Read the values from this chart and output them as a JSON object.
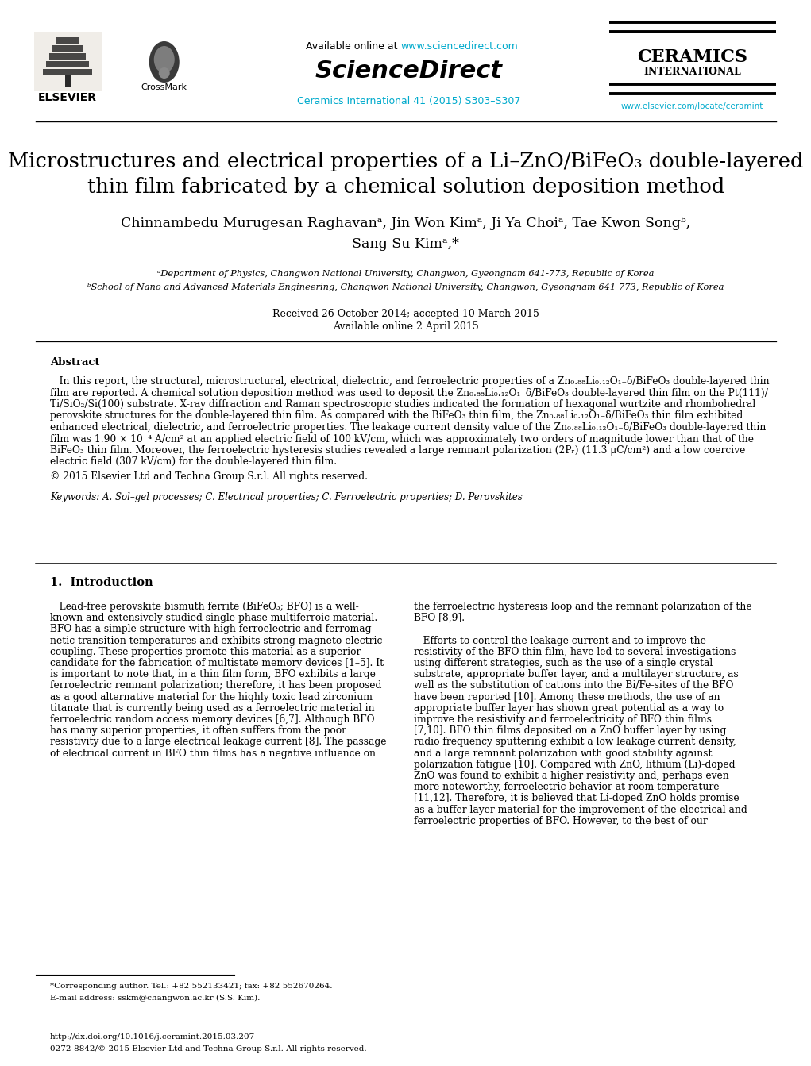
{
  "page_bg": "#ffffff",
  "header": {
    "available_text": "Available online at ",
    "url": "www.sciencedirect.com",
    "sciencedirect": "ScienceDirect",
    "journal_line1": "Ceramics International 41 (2015) S303–S307",
    "ceramics_line1": "CERAMICS",
    "ceramics_line2": "INTERNATIONAL",
    "elsevier_text": "ELSEVIER",
    "crossmark_text": "CrossMark",
    "website": "www.elsevier.com/locate/ceramint"
  },
  "title_line1": "Microstructures and electrical properties of a Li–ZnO/BiFeO₃ double-layered",
  "title_line2": "thin film fabricated by a chemical solution deposition method",
  "authors": "Chinnambedu Murugesan Raghavanᵃ, Jin Won Kimᵃ, Ji Ya Choiᵃ, Tae Kwon Songᵇ,",
  "authors2": "Sang Su Kimᵃ,*",
  "affil_a": "ᵃDepartment of Physics, Changwon National University, Changwon, Gyeongnam 641-773, Republic of Korea",
  "affil_b": "ᵇSchool of Nano and Advanced Materials Engineering, Changwon National University, Changwon, Gyeongnam 641-773, Republic of Korea",
  "received": "Received 26 October 2014; accepted 10 March 2015",
  "available_online": "Available online 2 April 2015",
  "abstract_title": "Abstract",
  "copyright": "© 2015 Elsevier Ltd and Techna Group S.r.l. All rights reserved.",
  "keywords": "Keywords: A. Sol–gel processes; C. Electrical properties; C. Ferroelectric properties; D. Perovskites",
  "section1_title": "1.  Introduction",
  "footnote_star": "*Corresponding author. Tel.: +82 552133421; fax: +82 552670264.",
  "footnote_email": "E-mail address: sskm@changwon.ac.kr (S.S. Kim).",
  "footer_doi": "http://dx.doi.org/10.1016/j.ceramint.2015.03.207",
  "footer_rights": "0272-8842/© 2015 Elsevier Ltd and Techna Group S.r.l. All rights reserved.",
  "link_color": "#00aacc",
  "text_color": "#000000"
}
